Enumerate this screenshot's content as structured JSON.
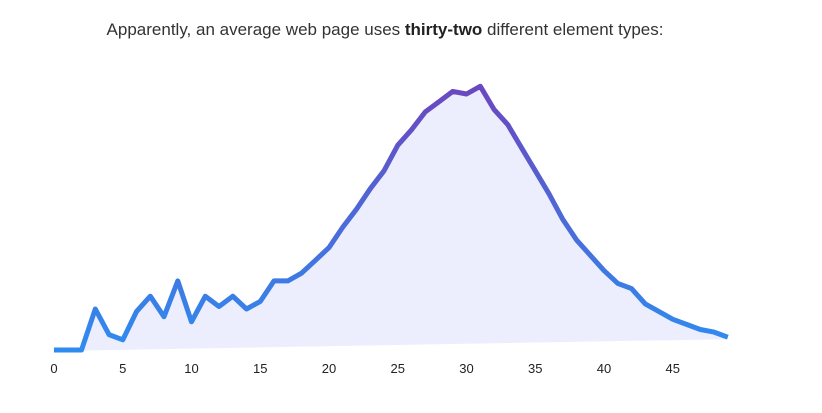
{
  "headline": {
    "before": "Apparently, an average web page uses ",
    "emphasis": "thirty-two",
    "after": " different element types:"
  },
  "chart_data": {
    "type": "area",
    "title": "",
    "xlabel": "",
    "ylabel": "",
    "xlim": [
      0,
      50
    ],
    "ylim": [
      0,
      100
    ],
    "x_ticks": [
      "0",
      "5",
      "10",
      "15",
      "20",
      "25",
      "30",
      "35",
      "40",
      "45"
    ],
    "grid": false,
    "legend": "none",
    "colors": {
      "line_start": "#2e8cf0",
      "line_end": "#6a48c0",
      "fill": "#eceefe"
    },
    "series": [
      {
        "x": [
          0,
          1,
          2,
          3,
          4,
          5,
          6,
          7,
          8,
          9,
          10,
          11,
          12,
          13,
          14,
          15,
          16,
          17,
          18,
          19,
          20,
          21,
          22,
          23,
          24,
          25,
          26,
          27,
          28,
          29,
          30,
          31,
          32,
          33,
          34,
          35,
          36,
          37,
          38,
          39,
          40,
          41,
          42,
          43,
          44,
          45,
          46,
          47,
          48,
          49
        ],
        "values": [
          0,
          0,
          0,
          16,
          6,
          4,
          15,
          21,
          13,
          27,
          11,
          21,
          17,
          21,
          16,
          19,
          27,
          27,
          30,
          35,
          40,
          48,
          55,
          63,
          70,
          80,
          86,
          93,
          97,
          101,
          100,
          103,
          94,
          88,
          79,
          70,
          61,
          51,
          43,
          37,
          31,
          26,
          24,
          18,
          15,
          12,
          10,
          8,
          7,
          5
        ]
      }
    ]
  }
}
